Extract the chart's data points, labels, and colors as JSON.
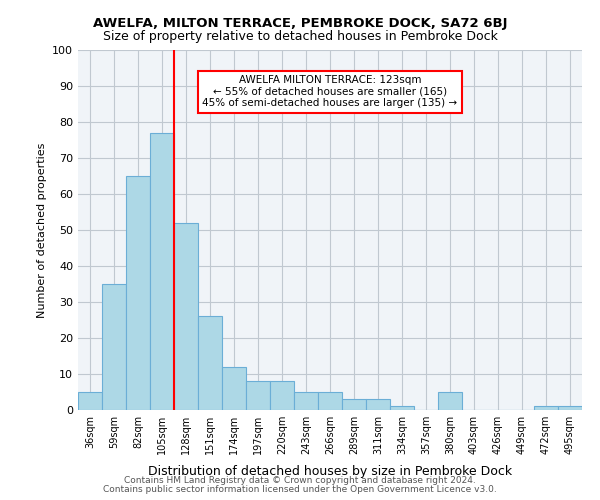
{
  "title": "AWELFA, MILTON TERRACE, PEMBROKE DOCK, SA72 6BJ",
  "subtitle": "Size of property relative to detached houses in Pembroke Dock",
  "xlabel": "Distribution of detached houses by size in Pembroke Dock",
  "ylabel": "Number of detached properties",
  "bin_labels": [
    "36sqm",
    "59sqm",
    "82sqm",
    "105sqm",
    "128sqm",
    "151sqm",
    "174sqm",
    "197sqm",
    "220sqm",
    "243sqm",
    "266sqm",
    "289sqm",
    "311sqm",
    "334sqm",
    "357sqm",
    "380sqm",
    "403sqm",
    "426sqm",
    "449sqm",
    "472sqm",
    "495sqm"
  ],
  "bar_heights": [
    5,
    35,
    65,
    77,
    52,
    26,
    12,
    8,
    8,
    5,
    5,
    3,
    3,
    1,
    0,
    5,
    0,
    0,
    0,
    1,
    1
  ],
  "bar_color": "#add8e6",
  "bar_edge_color": "#6baed6",
  "marker_value": 123,
  "marker_bin_index": 4,
  "marker_color": "red",
  "annotation_text": "AWELFA MILTON TERRACE: 123sqm\n← 55% of detached houses are smaller (165)\n45% of semi-detached houses are larger (135) →",
  "annotation_box_color": "white",
  "annotation_box_edge_color": "red",
  "ylim": [
    0,
    100
  ],
  "yticks": [
    0,
    10,
    20,
    30,
    40,
    50,
    60,
    70,
    80,
    90,
    100
  ],
  "footer_line1": "Contains HM Land Registry data © Crown copyright and database right 2024.",
  "footer_line2": "Contains public sector information licensed under the Open Government Licence v3.0.",
  "background_color": "#f0f4f8",
  "grid_color": "#c0c8d0"
}
